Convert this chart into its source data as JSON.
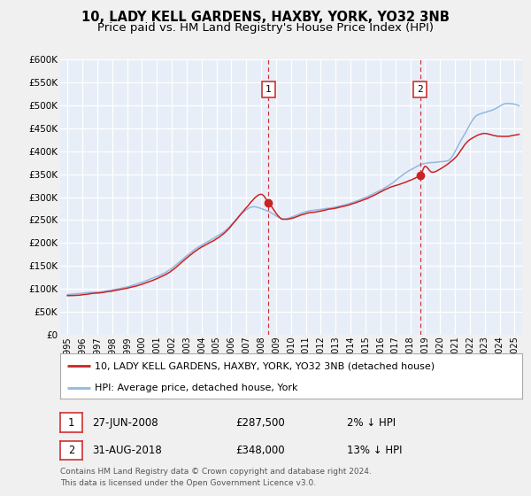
{
  "title": "10, LADY KELL GARDENS, HAXBY, YORK, YO32 3NB",
  "subtitle": "Price paid vs. HM Land Registry's House Price Index (HPI)",
  "ylim": [
    0,
    600000
  ],
  "yticks": [
    0,
    50000,
    100000,
    150000,
    200000,
    250000,
    300000,
    350000,
    400000,
    450000,
    500000,
    550000,
    600000
  ],
  "ytick_labels": [
    "£0",
    "£50K",
    "£100K",
    "£150K",
    "£200K",
    "£250K",
    "£300K",
    "£350K",
    "£400K",
    "£450K",
    "£500K",
    "£550K",
    "£600K"
  ],
  "xlim_start": 1994.5,
  "xlim_end": 2025.5,
  "xticks": [
    1995,
    1996,
    1997,
    1998,
    1999,
    2000,
    2001,
    2002,
    2003,
    2004,
    2005,
    2006,
    2007,
    2008,
    2009,
    2010,
    2011,
    2012,
    2013,
    2014,
    2015,
    2016,
    2017,
    2018,
    2019,
    2020,
    2021,
    2022,
    2023,
    2024,
    2025
  ],
  "fig_background": "#f0f0f0",
  "plot_bg_color": "#e8eef8",
  "grid_color": "#ffffff",
  "hpi_color": "#92b8e0",
  "price_color": "#cc2222",
  "sale1_date": 2008.49,
  "sale1_price": 287500,
  "sale2_date": 2018.66,
  "sale2_price": 348000,
  "vline_color": "#cc3333",
  "legend_label_price": "10, LADY KELL GARDENS, HAXBY, YORK, YO32 3NB (detached house)",
  "legend_label_hpi": "HPI: Average price, detached house, York",
  "table_row1": [
    "1",
    "27-JUN-2008",
    "£287,500",
    "2% ↓ HPI"
  ],
  "table_row2": [
    "2",
    "31-AUG-2018",
    "£348,000",
    "13% ↓ HPI"
  ],
  "footer": "Contains HM Land Registry data © Crown copyright and database right 2024.\nThis data is licensed under the Open Government Licence v3.0.",
  "title_fontsize": 10.5,
  "subtitle_fontsize": 9.5
}
